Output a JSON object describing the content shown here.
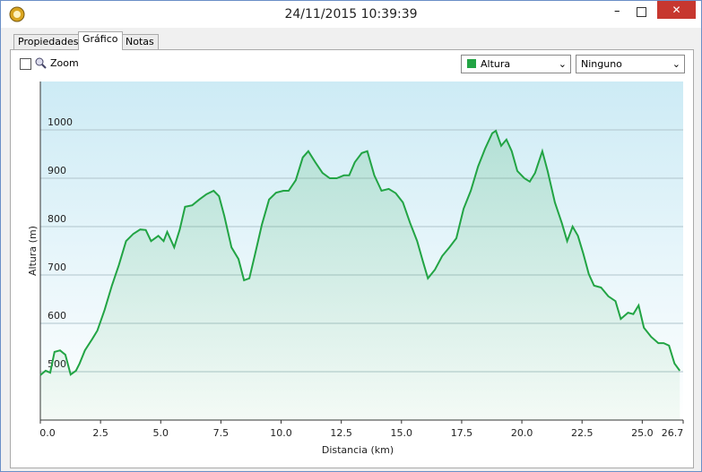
{
  "window": {
    "title": "24/11/2015 10:39:39"
  },
  "tabs": [
    "Propiedades",
    "Gráfico",
    "Notas"
  ],
  "toolbar": {
    "zoom": "Zoom",
    "dropdowns": [
      "Altura",
      "Ninguno"
    ]
  },
  "chart_data": {
    "type": "area",
    "xlabel": "Distancia  (km)",
    "ylabel": "Altura (m)",
    "xlim": [
      0,
      26.7
    ],
    "ylim": [
      400,
      1100
    ],
    "xticks": [
      {
        "value": 0,
        "label": "0.0"
      },
      2.5,
      {
        "value": 5,
        "label": "5.0"
      },
      7.5,
      {
        "value": 10,
        "label": "10.0"
      },
      12.5,
      {
        "value": 15,
        "label": "15.0"
      },
      17.5,
      {
        "value": 20,
        "label": "20.0"
      },
      22.5,
      {
        "value": 25,
        "label": "25.0"
      },
      26.7
    ],
    "yticks": [
      500,
      600,
      700,
      800,
      900,
      1000
    ],
    "grid": true,
    "series": [
      {
        "name": "Altura",
        "color": "#22a444",
        "x": [
          0,
          0.22,
          0.41,
          0.59,
          0.82,
          1.04,
          1.26,
          1.48,
          1.63,
          1.85,
          2.15,
          2.37,
          2.67,
          2.97,
          3.26,
          3.56,
          3.86,
          4.15,
          4.38,
          4.6,
          4.9,
          5.12,
          5.27,
          5.56,
          5.79,
          6.01,
          6.31,
          6.6,
          6.9,
          7.2,
          7.42,
          7.64,
          7.94,
          8.23,
          8.46,
          8.68,
          8.9,
          9.2,
          9.5,
          9.79,
          10.09,
          10.31,
          10.61,
          10.9,
          11.13,
          11.42,
          11.72,
          12.02,
          12.31,
          12.61,
          12.83,
          13.06,
          13.35,
          13.58,
          13.87,
          14.17,
          14.47,
          14.76,
          15.06,
          15.36,
          15.65,
          15.88,
          16.1,
          16.39,
          16.69,
          16.99,
          17.28,
          17.58,
          17.88,
          18.18,
          18.47,
          18.77,
          18.92,
          19.14,
          19.36,
          19.58,
          19.81,
          20.1,
          20.33,
          20.55,
          20.85,
          21.07,
          21.37,
          21.66,
          21.88,
          22.11,
          22.33,
          22.55,
          22.78,
          23.0,
          23.29,
          23.59,
          23.89,
          24.11,
          24.41,
          24.63,
          24.85,
          25.07,
          25.37,
          25.67,
          25.89,
          26.11,
          26.34,
          26.56
        ],
        "values": [
          493,
          502,
          498,
          541,
          544,
          535,
          494,
          502,
          517,
          544,
          567,
          585,
          628,
          678,
          720,
          770,
          785,
          794,
          793,
          770,
          781,
          770,
          789,
          757,
          794,
          841,
          844,
          856,
          867,
          874,
          863,
          822,
          757,
          733,
          689,
          693,
          739,
          804,
          856,
          870,
          874,
          874,
          896,
          943,
          956,
          933,
          911,
          900,
          900,
          906,
          906,
          933,
          952,
          956,
          906,
          874,
          878,
          869,
          850,
          807,
          770,
          730,
          693,
          711,
          739,
          757,
          776,
          837,
          874,
          924,
          961,
          993,
          998,
          967,
          980,
          956,
          915,
          900,
          893,
          911,
          956,
          915,
          850,
          807,
          770,
          800,
          781,
          744,
          702,
          678,
          674,
          656,
          646,
          609,
          622,
          619,
          637,
          591,
          572,
          559,
          559,
          554,
          517,
          502
        ]
      }
    ]
  }
}
